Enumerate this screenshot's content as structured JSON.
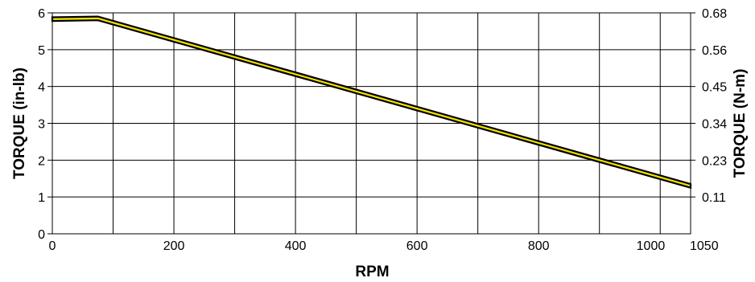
{
  "chart_data": {
    "type": "line",
    "xlabel": "RPM",
    "ylabel": "TORQUE (in-lb)",
    "y2label": "TORQUE (N-m)",
    "xlim": [
      0,
      1050
    ],
    "ylim": [
      0,
      6
    ],
    "x_ticks": [
      "0",
      "200",
      "400",
      "600",
      "800",
      "1000",
      "1050"
    ],
    "x_tick_values": [
      0,
      200,
      400,
      600,
      800,
      1000,
      1050
    ],
    "y_ticks": [
      "0",
      "1",
      "2",
      "3",
      "4",
      "5",
      "6"
    ],
    "y_tick_values": [
      0,
      1,
      2,
      3,
      4,
      5,
      6
    ],
    "y2_ticks": [
      "0.11",
      "0.23",
      "0.34",
      "0.45",
      "0.56",
      "0.68"
    ],
    "y2_tick_values_in_lb": [
      1,
      2,
      3,
      4,
      5,
      6
    ],
    "vertical_gridlines_x": [
      100,
      200,
      300,
      400,
      500,
      600,
      700,
      800,
      900,
      1000
    ],
    "grid": true,
    "line_color": "#f0e000",
    "line_outline_color": "#000000",
    "series": [
      {
        "x": [
          0,
          75,
          1050
        ],
        "y_upper": [
          5.88,
          5.9,
          1.35
        ],
        "y_lower": [
          5.78,
          5.8,
          1.25
        ]
      }
    ]
  }
}
